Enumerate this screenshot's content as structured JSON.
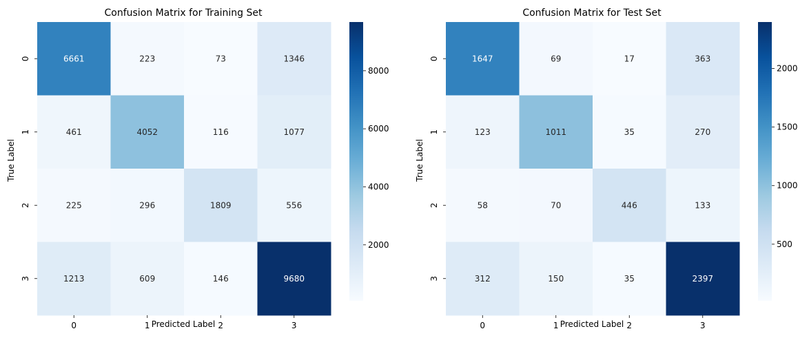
{
  "chart_data": [
    {
      "type": "heatmap",
      "title": "Confusion Matrix for Training Set",
      "xlabel": "Predicted Label",
      "ylabel": "True Label",
      "x_categories": [
        "0",
        "1",
        "2",
        "3"
      ],
      "y_categories": [
        "0",
        "1",
        "2",
        "3"
      ],
      "values": [
        [
          6661,
          223,
          73,
          1346
        ],
        [
          461,
          4052,
          116,
          1077
        ],
        [
          225,
          296,
          1809,
          556
        ],
        [
          1213,
          609,
          146,
          9680
        ]
      ],
      "colormap": "Blues",
      "colorbar_ticks": [
        "2000",
        "4000",
        "6000",
        "8000"
      ],
      "colorbar_tick_values": [
        2000,
        4000,
        6000,
        8000
      ],
      "color_range": [
        73,
        9680
      ]
    },
    {
      "type": "heatmap",
      "title": "Confusion Matrix for Test Set",
      "xlabel": "Predicted Label",
      "ylabel": "True Label",
      "x_categories": [
        "0",
        "1",
        "2",
        "3"
      ],
      "y_categories": [
        "0",
        "1",
        "2",
        "3"
      ],
      "values": [
        [
          1647,
          69,
          17,
          363
        ],
        [
          123,
          1011,
          35,
          270
        ],
        [
          58,
          70,
          446,
          133
        ],
        [
          312,
          150,
          35,
          2397
        ]
      ],
      "colormap": "Blues",
      "colorbar_ticks": [
        "500",
        "1000",
        "1500",
        "2000"
      ],
      "colorbar_tick_values": [
        500,
        1000,
        1500,
        2000
      ],
      "color_range": [
        17,
        2397
      ]
    }
  ]
}
